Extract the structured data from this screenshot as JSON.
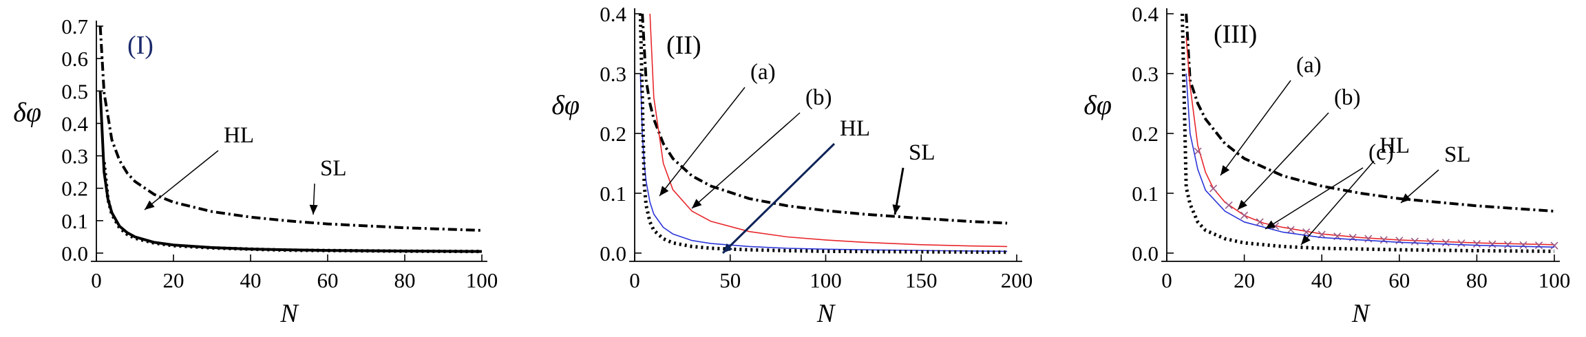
{
  "chart_data": [
    {
      "type": "line",
      "panel_label": "(I)",
      "xlabel": "N",
      "ylabel": "δφ",
      "xlim": [
        0,
        100
      ],
      "ylim": [
        0,
        0.7
      ],
      "xticks": [
        0,
        20,
        40,
        60,
        80,
        100
      ],
      "yticks": [
        0.0,
        0.1,
        0.2,
        0.3,
        0.4,
        0.5,
        0.6,
        0.7
      ],
      "grid": false,
      "series": [
        {
          "name": "SL",
          "color": "#000000",
          "style": "dashdot",
          "x": [
            1,
            2,
            4,
            6,
            8,
            10,
            15,
            20,
            30,
            40,
            50,
            60,
            80,
            100
          ],
          "y": [
            0.7,
            0.495,
            0.35,
            0.286,
            0.247,
            0.221,
            0.181,
            0.157,
            0.128,
            0.111,
            0.099,
            0.09,
            0.078,
            0.07
          ]
        },
        {
          "name": "",
          "color": "#000000",
          "style": "solid",
          "x": [
            1,
            2,
            3,
            4,
            6,
            8,
            10,
            15,
            20,
            30,
            40,
            50,
            60,
            80,
            100
          ],
          "y": [
            0.5,
            0.25,
            0.167,
            0.125,
            0.083,
            0.063,
            0.05,
            0.033,
            0.025,
            0.017,
            0.0125,
            0.01,
            0.0083,
            0.0063,
            0.005
          ]
        },
        {
          "name": "HL",
          "color": "#000000",
          "style": "dotted",
          "x": [
            2,
            3,
            4,
            6,
            8,
            10,
            15,
            20,
            30,
            40,
            50,
            60,
            80,
            100
          ],
          "y": [
            0.28,
            0.167,
            0.12,
            0.078,
            0.058,
            0.046,
            0.031,
            0.023,
            0.016,
            0.012,
            0.009,
            0.0078,
            0.006,
            0.0048
          ]
        }
      ],
      "annotations": [
        {
          "text": "HL",
          "x": 16,
          "y": 0.05
        },
        {
          "text": "SL",
          "x": 60,
          "y": 0.092
        }
      ]
    },
    {
      "type": "line",
      "panel_label": "(II)",
      "xlabel": "N",
      "ylabel": "δφ",
      "xlim": [
        0,
        200
      ],
      "ylim": [
        0,
        0.4
      ],
      "xticks": [
        0,
        50,
        100,
        150,
        200
      ],
      "yticks": [
        0.0,
        0.1,
        0.2,
        0.3,
        0.4
      ],
      "grid": false,
      "series": [
        {
          "name": "SL",
          "color": "#000000",
          "style": "dashdot",
          "x": [
            4,
            6,
            8,
            10,
            15,
            20,
            30,
            40,
            60,
            80,
            100,
            120,
            150,
            175,
            195
          ],
          "y": [
            0.4,
            0.289,
            0.25,
            0.224,
            0.183,
            0.158,
            0.129,
            0.112,
            0.091,
            0.079,
            0.071,
            0.065,
            0.058,
            0.053,
            0.05
          ]
        },
        {
          "name": "(b)",
          "color": "#e8262a",
          "style": "solid",
          "x": [
            8,
            10,
            15,
            20,
            30,
            40,
            60,
            80,
            100,
            120,
            150,
            175,
            195
          ],
          "y": [
            0.4,
            0.26,
            0.15,
            0.106,
            0.07,
            0.053,
            0.036,
            0.027,
            0.022,
            0.018,
            0.014,
            0.012,
            0.011
          ]
        },
        {
          "name": "(a)",
          "color": "#2b35d8",
          "style": "solid",
          "x": [
            3,
            4,
            5,
            6,
            8,
            10,
            15,
            20,
            30,
            40,
            60,
            80,
            100,
            130,
            160,
            195
          ],
          "y": [
            0.3,
            0.2,
            0.15,
            0.12,
            0.085,
            0.065,
            0.043,
            0.032,
            0.021,
            0.016,
            0.011,
            0.008,
            0.0065,
            0.005,
            0.004,
            0.003
          ]
        },
        {
          "name": "HL",
          "color": "#000000",
          "style": "dotted",
          "x": [
            3,
            4,
            5,
            6,
            8,
            10,
            15,
            20,
            30,
            40,
            60,
            80,
            100,
            130,
            160,
            195
          ],
          "y": [
            0.4,
            0.26,
            0.115,
            0.08,
            0.052,
            0.038,
            0.024,
            0.017,
            0.011,
            0.008,
            0.0055,
            0.004,
            0.003,
            0.0025,
            0.002,
            0.0015
          ]
        }
      ],
      "annotations": [
        {
          "text": "(a)",
          "x": 82,
          "y": 0.3
        },
        {
          "text": "(b)",
          "x": 113,
          "y": 0.27
        },
        {
          "text": "HL",
          "x": 150,
          "y": 0.22
        },
        {
          "text": "SL",
          "x": 193,
          "y": 0.16
        }
      ]
    },
    {
      "type": "line",
      "panel_label": "(III)",
      "xlabel": "N",
      "ylabel": "δφ",
      "xlim": [
        0,
        100
      ],
      "ylim": [
        0,
        0.4
      ],
      "xticks": [
        0,
        20,
        40,
        60,
        80,
        100
      ],
      "yticks": [
        0.0,
        0.1,
        0.2,
        0.3,
        0.4
      ],
      "grid": false,
      "series": [
        {
          "name": "SL",
          "color": "#000000",
          "style": "dashdot",
          "x": [
            5,
            6,
            8,
            10,
            15,
            20,
            30,
            40,
            50,
            60,
            80,
            100
          ],
          "y": [
            0.4,
            0.289,
            0.25,
            0.224,
            0.183,
            0.158,
            0.129,
            0.112,
            0.1,
            0.091,
            0.079,
            0.07
          ]
        },
        {
          "name": "(b)",
          "color": "#e8262a",
          "style": "solid",
          "x": [
            5,
            6,
            8,
            10,
            12,
            15,
            20,
            25,
            30,
            40,
            50,
            60,
            80,
            100
          ],
          "y": [
            0.36,
            0.28,
            0.18,
            0.135,
            0.108,
            0.085,
            0.063,
            0.05,
            0.043,
            0.032,
            0.026,
            0.022,
            0.017,
            0.014
          ]
        },
        {
          "name": "(c)",
          "color": "#9b5b86",
          "style": "cross-markers",
          "x": [
            8,
            12,
            16,
            20,
            24,
            28,
            32,
            36,
            40,
            44,
            48,
            52,
            56,
            60,
            64,
            68,
            72,
            76,
            80,
            84,
            88,
            92,
            96,
            100
          ],
          "y": [
            0.17,
            0.108,
            0.08,
            0.063,
            0.052,
            0.045,
            0.039,
            0.035,
            0.031,
            0.028,
            0.026,
            0.024,
            0.022,
            0.021,
            0.0195,
            0.0185,
            0.0175,
            0.0165,
            0.0155,
            0.0148,
            0.014,
            0.0135,
            0.013,
            0.0125
          ]
        },
        {
          "name": "(a)",
          "color": "#2b35d8",
          "style": "solid",
          "x": [
            5,
            6,
            8,
            10,
            15,
            20,
            30,
            40,
            60,
            80,
            100
          ],
          "y": [
            0.3,
            0.2,
            0.14,
            0.105,
            0.07,
            0.052,
            0.035,
            0.026,
            0.018,
            0.013,
            0.01
          ]
        },
        {
          "name": "HL",
          "color": "#000000",
          "style": "dotted",
          "x": [
            4,
            5,
            6,
            8,
            10,
            15,
            20,
            30,
            40,
            60,
            80,
            100
          ],
          "y": [
            0.4,
            0.11,
            0.082,
            0.052,
            0.038,
            0.024,
            0.017,
            0.011,
            0.008,
            0.0055,
            0.004,
            0.003
          ]
        }
      ],
      "annotations": [
        {
          "text": "(a)",
          "x": 38,
          "y": 0.3
        },
        {
          "text": "(b)",
          "x": 48,
          "y": 0.27
        },
        {
          "text": "(c)",
          "x": 57,
          "y": 0.237
        },
        {
          "text": "HL",
          "x": 65,
          "y": 0.2
        },
        {
          "text": "SL",
          "x": 78,
          "y": 0.15
        }
      ]
    }
  ]
}
